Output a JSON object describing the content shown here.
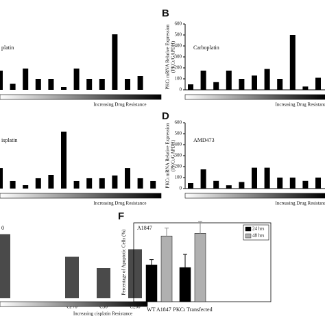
{
  "chart_data": [
    {
      "type": "bar",
      "annotation": "platin",
      "x_label": "Increasing Drug Resistance",
      "ylim": [
        0,
        600
      ],
      "values": [
        175,
        56,
        194,
        100,
        100,
        25,
        194,
        100,
        100,
        506,
        100,
        125
      ],
      "color": "#000000"
    },
    {
      "type": "bar",
      "panel": "B",
      "annotation": "Carboplatin",
      "y_label": [
        "PKCι mRNA Relative Expression",
        "(PKCι/GAPDH)"
      ],
      "x_label": "Increasing Drug Resistance",
      "ylim": [
        0,
        600
      ],
      "yticks": [
        0,
        100,
        200,
        300,
        400,
        500,
        600
      ],
      "values": [
        50,
        175,
        70,
        175,
        100,
        130,
        190,
        100,
        500,
        30,
        110
      ],
      "color": "#000000"
    },
    {
      "type": "bar",
      "annotation": "isplatin",
      "x_label": "Increasing Drug Resistance",
      "ylim": [
        0,
        600
      ],
      "values": [
        187,
        69,
        31,
        94,
        125,
        519,
        69,
        94,
        94,
        119,
        187,
        94,
        69
      ],
      "color": "#000000"
    },
    {
      "type": "bar",
      "panel": "D",
      "annotation": "AMD473",
      "y_label": [
        "PKCι mRNA Relative Expression",
        "(PKCι/GAPDH)"
      ],
      "x_label": "Increasing Drug Resistance",
      "ylim": [
        0,
        600
      ],
      "yticks": [
        0,
        100,
        200,
        300,
        400,
        500,
        600
      ],
      "values": [
        50,
        175,
        70,
        30,
        60,
        190,
        190,
        100,
        100,
        70,
        100
      ],
      "color": "#000000"
    },
    {
      "type": "bar",
      "title": "0",
      "x_label": "Increasing cisplatin Resistance",
      "ylim": [
        0,
        100
      ],
      "categories": [
        null,
        "CP70",
        "C30",
        "C200"
      ],
      "values": [
        85,
        55,
        40,
        65
      ],
      "color": "#4a4a4a"
    },
    {
      "type": "grouped-bar",
      "panel": "F",
      "annotation": "A1847",
      "y_label": "Percentage of Apoptotic Cells (%)",
      "ylim": [
        0,
        0.6
      ],
      "categories": [
        "WT A1847",
        "PKCι Transfected"
      ],
      "series": [
        {
          "name": "24 hrs",
          "color": "#000000",
          "values": [
            0.28,
            0.26
          ],
          "errors": [
            0.04,
            0.1
          ]
        },
        {
          "name": "48 hrs",
          "color": "#b0b0b0",
          "values": [
            0.5,
            0.52
          ],
          "errors": [
            0.06,
            0.09
          ]
        }
      ]
    }
  ]
}
